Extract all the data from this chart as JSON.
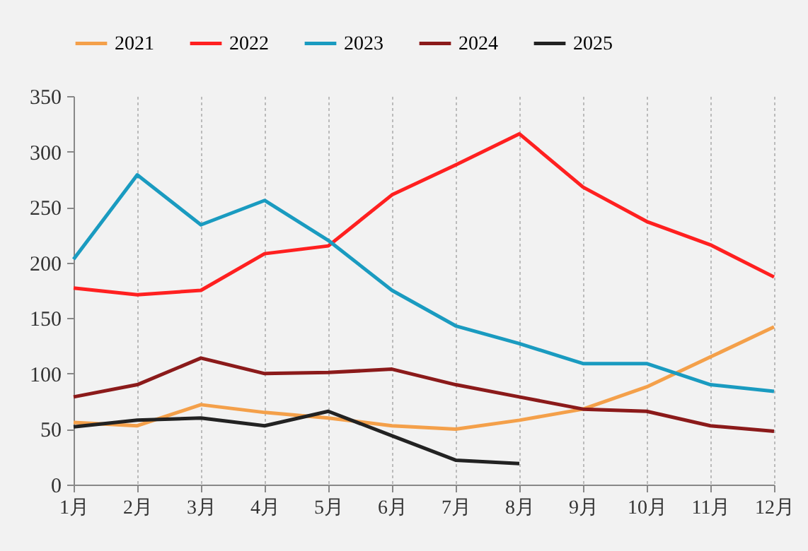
{
  "chart_data": {
    "type": "line",
    "categories": [
      "1月",
      "2月",
      "3月",
      "4月",
      "5月",
      "6月",
      "7月",
      "8月",
      "9月",
      "10月",
      "11月",
      "12月"
    ],
    "series": [
      {
        "name": "2021",
        "color": "#f4a04a",
        "values": [
          56,
          53,
          72,
          65,
          60,
          53,
          50,
          58,
          68,
          88,
          115,
          142
        ]
      },
      {
        "name": "2022",
        "color": "#ff2020",
        "values": [
          177,
          171,
          175,
          208,
          215,
          261,
          288,
          316,
          268,
          237,
          216,
          187
        ]
      },
      {
        "name": "2023",
        "color": "#1a9bc0",
        "values": [
          203,
          279,
          234,
          256,
          220,
          175,
          143,
          127,
          109,
          109,
          90,
          84
        ]
      },
      {
        "name": "2024",
        "color": "#8b1a1a",
        "values": [
          79,
          90,
          114,
          100,
          101,
          104,
          90,
          79,
          68,
          66,
          53,
          48
        ]
      },
      {
        "name": "2025",
        "color": "#222222",
        "values": [
          52,
          58,
          60,
          53,
          66,
          44,
          22,
          19,
          null,
          null,
          null,
          null
        ]
      }
    ],
    "ylim": [
      0,
      350
    ],
    "yticks": [
      0,
      50,
      100,
      150,
      200,
      250,
      300,
      350
    ],
    "grid": "x",
    "legend": "top",
    "marker": "none",
    "line_style": "solid"
  }
}
